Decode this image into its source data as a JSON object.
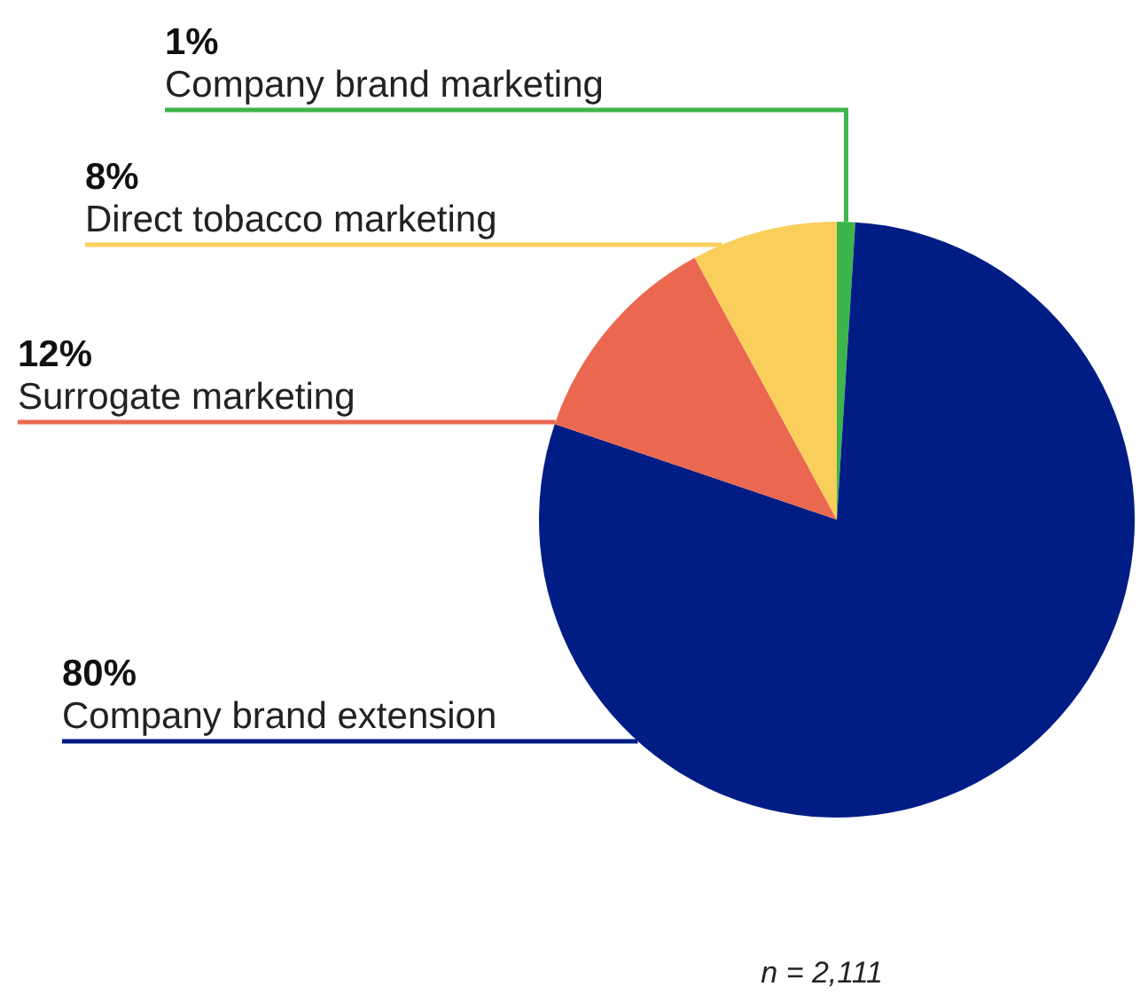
{
  "chart_data": {
    "type": "pie",
    "categories": [
      "Company brand marketing",
      "Company brand extension",
      "Surrogate marketing",
      "Direct tobacco marketing"
    ],
    "values": [
      1,
      80,
      12,
      8
    ],
    "value_labels": [
      "1%",
      "80%",
      "12%",
      "8%"
    ],
    "colors": [
      "#3db54a",
      "#001d85",
      "#eb6850",
      "#face5a"
    ],
    "legend": false,
    "annotations": [
      "n = 2,111"
    ]
  }
}
